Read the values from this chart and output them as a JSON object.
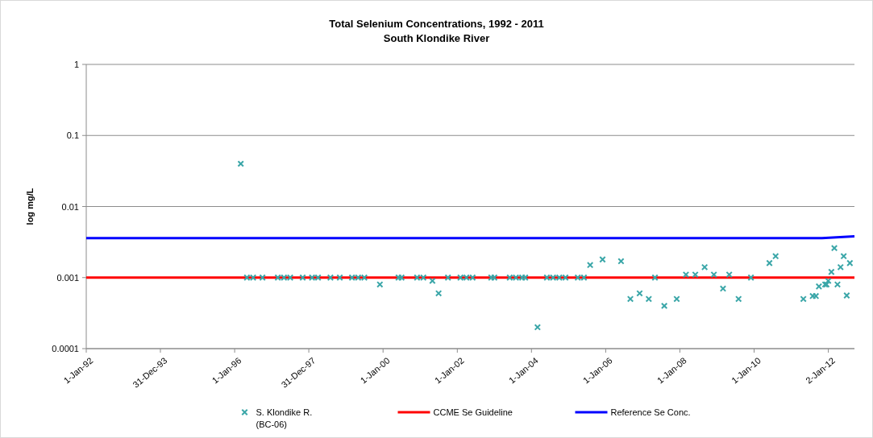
{
  "chart_data": {
    "type": "scatter",
    "title": "Total Selenium Concentrations, 1992 - 2011",
    "subtitle": "South Klondike River",
    "ylabel": "log mg/L",
    "log": "y",
    "grid": "y",
    "legend": "bottom",
    "xlim": [
      "1992-01-01",
      "2012-09-15"
    ],
    "xticks": [
      {
        "value": "1992-01-01",
        "label": "1-Jan-92"
      },
      {
        "value": "1993-12-31",
        "label": "31-Dec-93"
      },
      {
        "value": "1996-01-01",
        "label": "1-Jan-96"
      },
      {
        "value": "1997-12-31",
        "label": "31-Dec-97"
      },
      {
        "value": "2000-01-01",
        "label": "1-Jan-00"
      },
      {
        "value": "2002-01-01",
        "label": "1-Jan-02"
      },
      {
        "value": "2004-01-01",
        "label": "1-Jan-04"
      },
      {
        "value": "2006-01-01",
        "label": "1-Jan-06"
      },
      {
        "value": "2008-01-01",
        "label": "1-Jan-08"
      },
      {
        "value": "2010-01-01",
        "label": "1-Jan-10"
      },
      {
        "value": "2012-01-02",
        "label": "2-Jan-12"
      }
    ],
    "ylim": [
      0.0001,
      1
    ],
    "yticks": [
      0.0001,
      0.001,
      0.01,
      0.1,
      1
    ],
    "series": [
      {
        "name": "S. Klondike R. (BC-06)",
        "marker": "cross",
        "color": "#3aa6a8",
        "x": [
          "1996-03",
          "1996-05",
          "1996-07",
          "1996-10",
          "1997-03",
          "1997-05",
          "1997-07",
          "1997-11",
          "1998-02",
          "1998-04",
          "1998-08",
          "1998-11",
          "1999-03",
          "1999-05",
          "1999-07",
          "1999-12",
          "2000-06",
          "2000-07",
          "2000-12",
          "2001-02",
          "2001-05",
          "2001-07",
          "2001-10",
          "2002-02",
          "2002-04",
          "2002-06",
          "2002-12",
          "2003-01",
          "2003-06",
          "2003-08",
          "2003-10",
          "2003-11",
          "2004-03",
          "2004-06",
          "2004-08",
          "2004-10",
          "2004-12",
          "2005-04",
          "2005-06",
          "2005-08",
          "2005-12",
          "2006-06",
          "2006-09",
          "2006-12",
          "2007-03",
          "2007-05",
          "2007-08",
          "2007-12",
          "2008-03",
          "2008-06",
          "2008-09",
          "2008-12",
          "2009-03",
          "2009-05",
          "2009-08",
          "2009-12",
          "2010-06",
          "2010-08",
          "2011-05",
          "2011-08",
          "2011-09",
          "2011-10",
          "2011-12",
          "2011-12-15",
          "2012-01",
          "2012-02",
          "2012-03",
          "2012-04",
          "2012-05",
          "2012-06",
          "2012-07",
          "2012-08"
        ],
        "values": [
          0.04,
          0.001,
          0.001,
          0.001,
          0.001,
          0.001,
          0.001,
          0.001,
          0.001,
          0.001,
          0.001,
          0.001,
          0.001,
          0.001,
          0.001,
          0.0008,
          0.001,
          0.001,
          0.001,
          0.001,
          0.0009,
          0.0006,
          0.001,
          0.001,
          0.001,
          0.001,
          0.001,
          0.001,
          0.001,
          0.001,
          0.001,
          0.001,
          0.0002,
          0.001,
          0.001,
          0.001,
          0.001,
          0.001,
          0.001,
          0.0015,
          0.0018,
          0.0017,
          0.0005,
          0.0006,
          0.0005,
          0.001,
          0.0004,
          0.0005,
          0.0011,
          0.0011,
          0.0014,
          0.0011,
          0.0007,
          0.0011,
          0.0005,
          0.001,
          0.0016,
          0.002,
          0.0005,
          0.00055,
          0.00055,
          0.00075,
          0.0008,
          0.0008,
          0.0009,
          0.0012,
          0.0026,
          0.0008,
          0.0014,
          0.002,
          0.00056,
          0.0016
        ]
      },
      {
        "name": "CCME Se Guideline",
        "type": "line",
        "marker": "none",
        "color": "#ff0000",
        "x": [
          "1992-01-01",
          "2012-09-15"
        ],
        "values": [
          0.001,
          0.001
        ]
      },
      {
        "name": "Reference Se Conc.",
        "type": "line",
        "marker": "none",
        "color": "#0000ff",
        "x": [
          "1992-01-01",
          "2011-11-01",
          "2012-09-15"
        ],
        "values": [
          0.0036,
          0.0036,
          0.0038
        ]
      }
    ]
  }
}
